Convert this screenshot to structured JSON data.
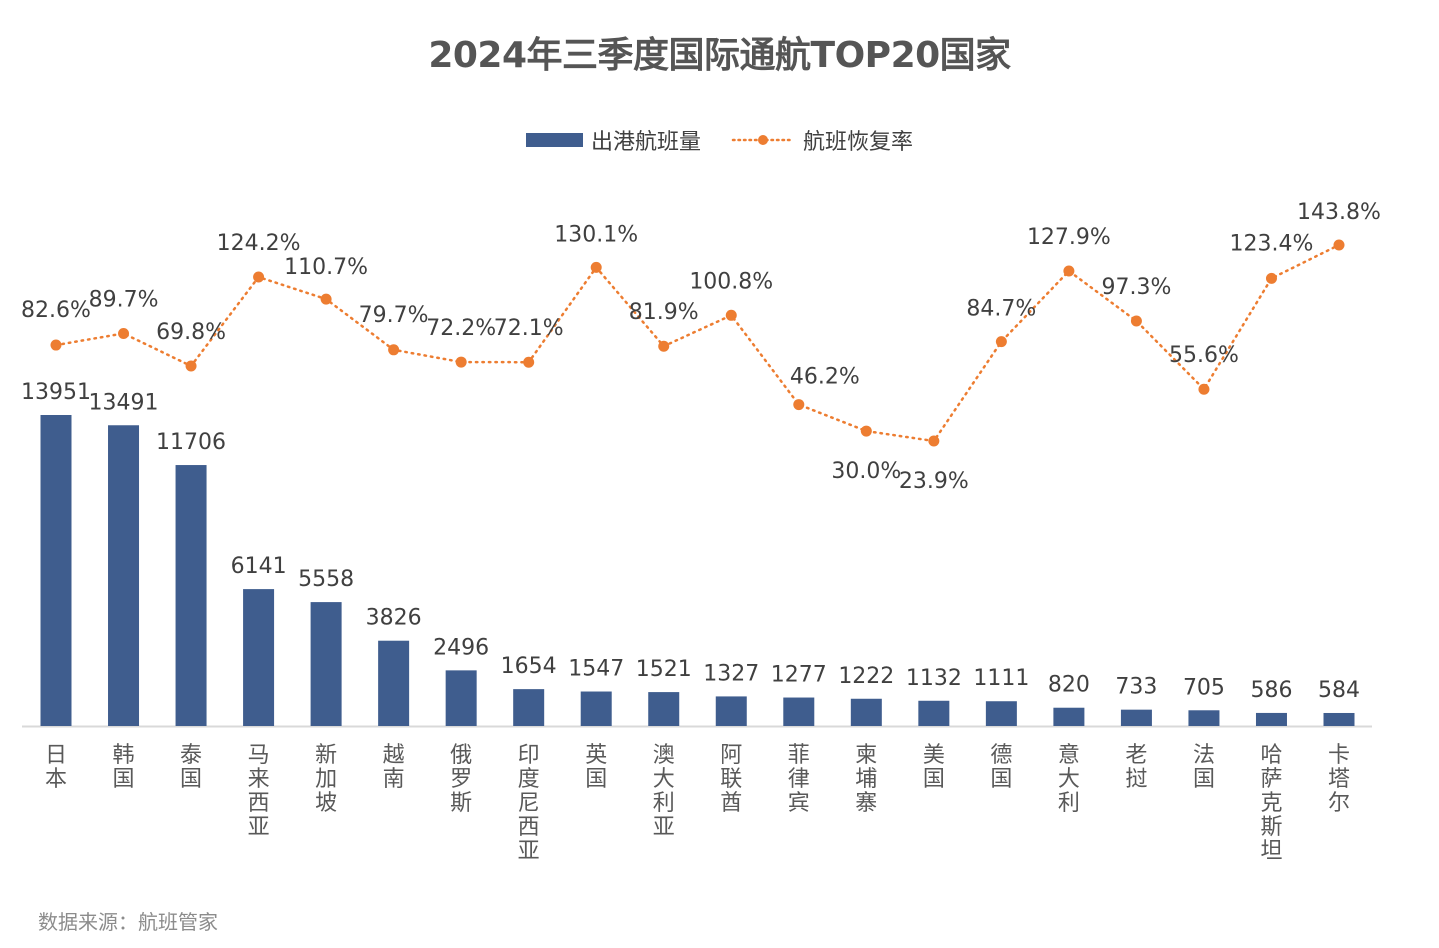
{
  "title": "2024年三季度国际通航TOP20国家",
  "source": "数据来源：航班管家",
  "legend": {
    "bar_label": "出港航班量",
    "line_label": "航班恢复率"
  },
  "colors": {
    "bar": "#3F5D8E",
    "line": "#ED7D31",
    "axis": "#D9D9D9"
  },
  "chart_data": {
    "type": "bar",
    "title": "2024年三季度国际通航TOP20国家",
    "xlabel": "",
    "ylabel": "",
    "grid": false,
    "legend_position": "top",
    "categories": [
      "日本",
      "韩国",
      "泰国",
      "马来西亚",
      "新加坡",
      "越南",
      "俄罗斯",
      "印度尼西亚",
      "英国",
      "澳大利亚",
      "阿联酋",
      "菲律宾",
      "柬埔寨",
      "美国",
      "德国",
      "意大利",
      "老挝",
      "法国",
      "哈萨克斯坦",
      "卡塔尔"
    ],
    "series": [
      {
        "name": "出港航班量",
        "type": "bar",
        "values": [
          13951,
          13491,
          11706,
          6141,
          5558,
          3826,
          2496,
          1654,
          1547,
          1521,
          1327,
          1277,
          1222,
          1132,
          1111,
          820,
          733,
          705,
          586,
          584
        ],
        "labels": [
          "13951",
          "13491",
          "11706",
          "6141",
          "5558",
          "3826",
          "2496",
          "1654",
          "1547",
          "1521",
          "1327",
          "1277",
          "1222",
          "1132",
          "1111",
          "820",
          "733",
          "705",
          "586",
          "584"
        ]
      },
      {
        "name": "航班恢复率",
        "type": "line",
        "unit": "%",
        "values": [
          82.6,
          89.7,
          69.8,
          124.2,
          110.7,
          79.7,
          72.2,
          72.1,
          130.1,
          81.9,
          100.8,
          46.2,
          30.0,
          23.9,
          84.7,
          127.9,
          97.3,
          55.6,
          123.4,
          143.8
        ],
        "labels": [
          "82.6%",
          "89.7%",
          "69.8%",
          "124.2%",
          "110.7%",
          "79.7%",
          "72.2%",
          "72.1%",
          "130.1%",
          "81.9%",
          "100.8%",
          "46.2%",
          "30.0%",
          "23.9%",
          "84.7%",
          "127.9%",
          "97.3%",
          "55.6%",
          "123.4%",
          "143.8%"
        ]
      }
    ]
  }
}
